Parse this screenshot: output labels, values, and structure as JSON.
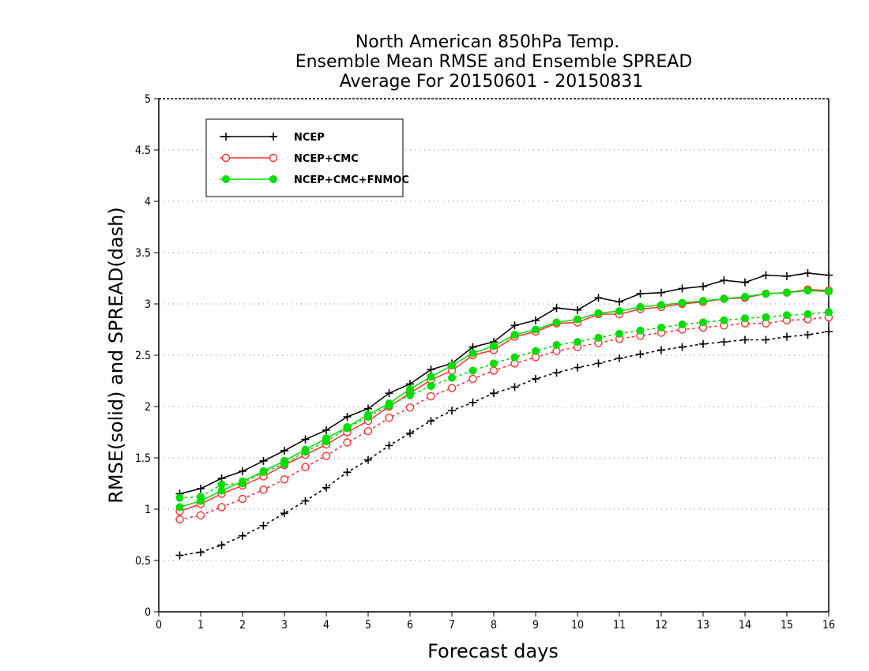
{
  "chart_data": {
    "type": "line",
    "title": [
      "North American 850hPa Temp.",
      "Ensemble Mean RMSE and Ensemble SPREAD",
      "Average For 20150601 - 20150831"
    ],
    "xlabel": "Forecast days",
    "ylabel": "RMSE(solid) and SPREAD(dash)",
    "xlim": [
      0,
      16
    ],
    "ylim": [
      0,
      5
    ],
    "xticks": [
      "0",
      "1",
      "2",
      "3",
      "4",
      "5",
      "6",
      "7",
      "8",
      "9",
      "10",
      "11",
      "12",
      "13",
      "14",
      "15",
      "16"
    ],
    "yticks": [
      "0",
      "0.5",
      "1",
      "1.5",
      "2",
      "2.5",
      "3",
      "3.5",
      "4",
      "4.5",
      "5"
    ],
    "grid": true,
    "legend_position": "top-left",
    "x": [
      0.5,
      1,
      1.5,
      2,
      2.5,
      3,
      3.5,
      4,
      4.5,
      5,
      5.5,
      6,
      6.5,
      7,
      7.5,
      8,
      8.5,
      9,
      9.5,
      10,
      10.5,
      11,
      11.5,
      12,
      12.5,
      13,
      13.5,
      14,
      14.5,
      15,
      15.5,
      16
    ],
    "series": [
      {
        "name": "NCEP",
        "color": "#000000",
        "marker": "plus",
        "rmse": [
          1.15,
          1.2,
          1.3,
          1.37,
          1.47,
          1.57,
          1.68,
          1.77,
          1.9,
          1.98,
          2.13,
          2.22,
          2.36,
          2.42,
          2.58,
          2.63,
          2.79,
          2.84,
          2.96,
          2.94,
          3.06,
          3.02,
          3.1,
          3.11,
          3.15,
          3.17,
          3.23,
          3.21,
          3.28,
          3.27,
          3.3,
          3.28
        ],
        "spread": [
          0.55,
          0.58,
          0.65,
          0.74,
          0.84,
          0.96,
          1.08,
          1.21,
          1.36,
          1.48,
          1.62,
          1.74,
          1.86,
          1.96,
          2.04,
          2.13,
          2.19,
          2.27,
          2.33,
          2.38,
          2.42,
          2.47,
          2.51,
          2.55,
          2.58,
          2.61,
          2.63,
          2.65,
          2.65,
          2.68,
          2.7,
          2.73
        ]
      },
      {
        "name": "NCEP+CMC",
        "color": "#ff3030",
        "marker": "circle",
        "rmse": [
          0.98,
          1.05,
          1.15,
          1.23,
          1.32,
          1.43,
          1.53,
          1.63,
          1.75,
          1.86,
          2.0,
          2.13,
          2.26,
          2.35,
          2.5,
          2.55,
          2.68,
          2.73,
          2.81,
          2.82,
          2.9,
          2.9,
          2.95,
          2.97,
          3.0,
          3.02,
          3.05,
          3.06,
          3.1,
          3.11,
          3.14,
          3.13
        ],
        "spread": [
          0.9,
          0.94,
          1.02,
          1.1,
          1.19,
          1.29,
          1.41,
          1.52,
          1.65,
          1.76,
          1.89,
          1.99,
          2.1,
          2.18,
          2.27,
          2.35,
          2.42,
          2.48,
          2.54,
          2.58,
          2.62,
          2.66,
          2.69,
          2.72,
          2.75,
          2.77,
          2.79,
          2.81,
          2.81,
          2.84,
          2.85,
          2.87
        ]
      },
      {
        "name": "NCEP+CMC+FNMOC",
        "color": "#00dd00",
        "marker": "dot",
        "rmse": [
          1.02,
          1.08,
          1.18,
          1.27,
          1.37,
          1.47,
          1.58,
          1.69,
          1.8,
          1.92,
          2.03,
          2.17,
          2.29,
          2.4,
          2.52,
          2.59,
          2.7,
          2.75,
          2.82,
          2.85,
          2.91,
          2.93,
          2.97,
          2.99,
          3.01,
          3.03,
          3.05,
          3.07,
          3.1,
          3.11,
          3.13,
          3.12
        ],
        "spread": [
          1.11,
          1.12,
          1.24,
          1.25,
          1.36,
          1.44,
          1.56,
          1.66,
          1.79,
          1.9,
          2.01,
          2.11,
          2.2,
          2.28,
          2.35,
          2.42,
          2.48,
          2.54,
          2.6,
          2.63,
          2.67,
          2.71,
          2.74,
          2.77,
          2.8,
          2.82,
          2.84,
          2.86,
          2.87,
          2.89,
          2.9,
          2.92
        ]
      }
    ]
  }
}
